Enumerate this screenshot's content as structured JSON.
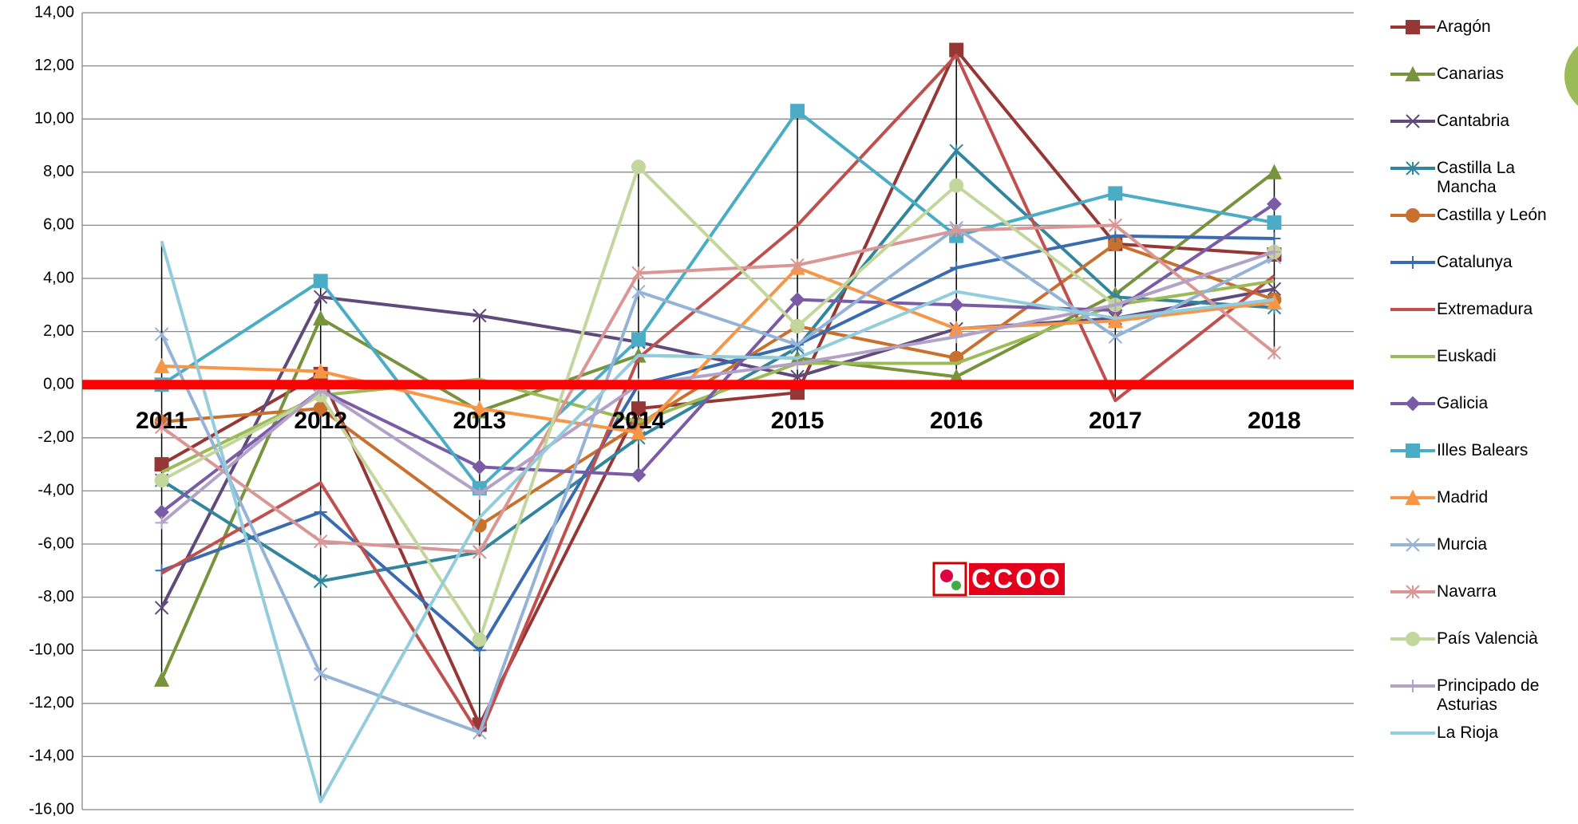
{
  "chart_data": {
    "type": "line",
    "categories": [
      "2011",
      "2012",
      "2013",
      "2014",
      "2015",
      "2016",
      "2017",
      "2018"
    ],
    "ylim": [
      -16,
      14
    ],
    "yticks": [
      {
        "value": 14,
        "label": "14,00"
      },
      {
        "value": 12,
        "label": "12,00"
      },
      {
        "value": 10,
        "label": "10,00"
      },
      {
        "value": 8,
        "label": "8,00"
      },
      {
        "value": 6,
        "label": "6,00"
      },
      {
        "value": 4,
        "label": "4,00"
      },
      {
        "value": 2,
        "label": "2,00"
      },
      {
        "value": 0,
        "label": "0,00"
      },
      {
        "value": -2,
        "label": "-2,00"
      },
      {
        "value": -4,
        "label": "-4,00"
      },
      {
        "value": -6,
        "label": "-6,00"
      },
      {
        "value": -8,
        "label": "-8,00"
      },
      {
        "value": -10,
        "label": "-10,00"
      },
      {
        "value": -12,
        "label": "-12,00"
      },
      {
        "value": -14,
        "label": "-14,00"
      },
      {
        "value": -16,
        "label": "-16,00"
      }
    ],
    "grid": true,
    "axis_color": "#FF0000",
    "high_low_lines": true,
    "legend": "right",
    "logo": "CCOO",
    "series": [
      {
        "name": "Aragón",
        "color": "#953735",
        "marker": "square",
        "values": [
          -3.0,
          0.4,
          -12.8,
          -0.9,
          -0.3,
          12.6,
          5.3,
          4.9
        ]
      },
      {
        "name": "Canarias",
        "color": "#77933C",
        "marker": "triangle",
        "values": [
          -11.1,
          2.5,
          -1.0,
          1.1,
          1.0,
          0.3,
          3.4,
          8.0
        ]
      },
      {
        "name": "Cantabria",
        "color": "#604A7B",
        "marker": "x",
        "values": [
          -8.4,
          3.3,
          2.6,
          1.6,
          0.3,
          2.1,
          2.5,
          3.6
        ]
      },
      {
        "name": "Castilla La Mancha",
        "color": "#31859C",
        "marker": "star",
        "values": [
          -3.6,
          -7.4,
          -6.3,
          -2.0,
          1.4,
          8.8,
          3.3,
          2.9
        ]
      },
      {
        "name": "Castilla y León",
        "color": "#C8702E",
        "marker": "circle",
        "values": [
          -1.4,
          -0.9,
          -5.3,
          -1.5,
          2.2,
          1.0,
          5.3,
          3.2
        ]
      },
      {
        "name": "Catalunya",
        "color": "#3A6BAE",
        "marker": "plus",
        "values": [
          -7.0,
          -4.8,
          -10.0,
          0.0,
          1.5,
          4.4,
          5.6,
          5.5
        ]
      },
      {
        "name": "Extremadura",
        "color": "#C0504D",
        "marker": "none",
        "values": [
          -7.1,
          -3.7,
          -13.2,
          1.0,
          6.0,
          12.4,
          -0.6,
          4.1
        ]
      },
      {
        "name": "Euskadi",
        "color": "#9BBB59",
        "marker": "none",
        "values": [
          -3.3,
          -0.4,
          0.2,
          -1.4,
          0.8,
          0.8,
          3.0,
          3.9
        ]
      },
      {
        "name": "Galicia",
        "color": "#7A5BA6",
        "marker": "diamond",
        "values": [
          -4.8,
          -0.2,
          -3.1,
          -3.4,
          3.2,
          3.0,
          2.8,
          6.8
        ]
      },
      {
        "name": "Illes Balears",
        "color": "#4BACC6",
        "marker": "square",
        "values": [
          0.0,
          3.9,
          -3.9,
          1.7,
          10.3,
          5.6,
          7.2,
          6.1
        ]
      },
      {
        "name": "Madrid",
        "color": "#F79646",
        "marker": "triangle",
        "values": [
          0.7,
          0.5,
          -0.9,
          -1.8,
          4.4,
          2.1,
          2.4,
          3.1
        ]
      },
      {
        "name": "Murcia",
        "color": "#95B3D7",
        "marker": "x",
        "values": [
          1.9,
          -10.9,
          -13.1,
          3.5,
          1.5,
          5.9,
          1.8,
          4.8
        ]
      },
      {
        "name": "Navarra",
        "color": "#D99694",
        "marker": "star",
        "values": [
          -1.6,
          -5.9,
          -6.3,
          4.2,
          4.5,
          5.8,
          6.0,
          1.2
        ]
      },
      {
        "name": "País Valencià",
        "color": "#C3D69B",
        "marker": "circle",
        "values": [
          -3.6,
          -0.4,
          -9.6,
          8.2,
          2.2,
          7.5,
          3.0,
          5.0
        ]
      },
      {
        "name": "Principado de Asturias",
        "color": "#B3A2C7",
        "marker": "plus",
        "values": [
          -5.2,
          -0.2,
          -4.1,
          0.0,
          0.8,
          1.8,
          3.0,
          5.0
        ]
      },
      {
        "name": "La Rioja",
        "color": "#93CDDD",
        "marker": "none",
        "values": [
          5.4,
          -15.7,
          -5.0,
          1.1,
          1.0,
          3.5,
          2.5,
          3.2
        ]
      }
    ]
  }
}
